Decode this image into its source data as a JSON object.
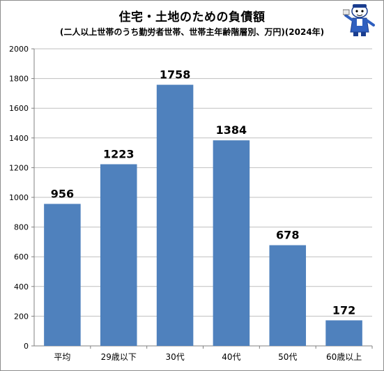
{
  "chart_data": {
    "type": "bar",
    "title": "住宅・土地のための負債額",
    "subtitle": "(二人以上世帯のうち勤労者世帯、世帯主年齢階層別、万円)(2024年)",
    "categories": [
      "平均",
      "29歳以下",
      "30代",
      "40代",
      "50代",
      "60歳以上"
    ],
    "values": [
      956,
      1223,
      1758,
      1384,
      678,
      172
    ],
    "ylim": [
      0,
      2000
    ],
    "yticks": [
      0,
      200,
      400,
      600,
      800,
      1000,
      1200,
      1400,
      1600,
      1800,
      2000
    ],
    "grid": true,
    "data_labels": true,
    "bar_color": "#4f81bd",
    "grid_color": "#bfbfbf"
  },
  "mascot_icon": "mascot-character-icon"
}
